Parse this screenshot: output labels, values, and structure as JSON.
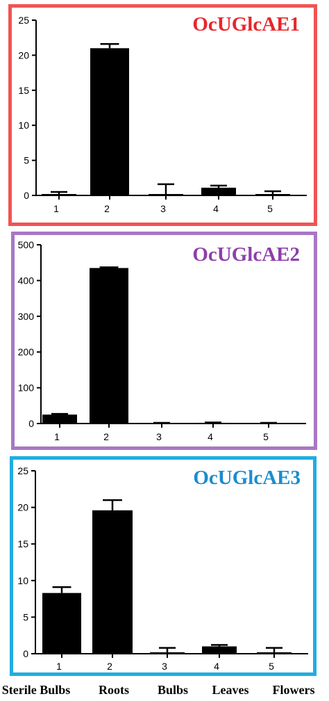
{
  "bottom_labels": [
    "Sterile Bulbs",
    "Roots",
    "Bulbs",
    "Leaves",
    "Flowers"
  ],
  "chart_data": [
    {
      "type": "bar",
      "title": "OcUGlcAE1",
      "title_color": "#e8262a",
      "border_color": "#f05455",
      "categories": [
        "1",
        "2",
        "3",
        "4",
        "5"
      ],
      "values": [
        0.2,
        21.0,
        0.2,
        1.1,
        0.2
      ],
      "errors": [
        0.3,
        0.6,
        1.4,
        0.3,
        0.4
      ],
      "ylim": [
        0,
        25
      ],
      "yticks": [
        0,
        5,
        10,
        15,
        20,
        25
      ],
      "xlabel": "",
      "ylabel": ""
    },
    {
      "type": "bar",
      "title": "OcUGlcAE2",
      "title_color": "#8d3fa9",
      "border_color": "#a877c5",
      "categories": [
        "1",
        "2",
        "3",
        "4",
        "5"
      ],
      "values": [
        25,
        435,
        1,
        2,
        1
      ],
      "errors": [
        2,
        2,
        1,
        1,
        1
      ],
      "ylim": [
        0,
        500
      ],
      "yticks": [
        0,
        100,
        200,
        300,
        400,
        500
      ],
      "xlabel": "",
      "ylabel": ""
    },
    {
      "type": "bar",
      "title": "OcUGlcAE3",
      "title_color": "#1b8ccf",
      "border_color": "#1faee0",
      "categories": [
        "1",
        "2",
        "3",
        "4",
        "5"
      ],
      "values": [
        8.3,
        19.6,
        0.2,
        1.0,
        0.2
      ],
      "errors": [
        0.8,
        1.4,
        0.6,
        0.2,
        0.6
      ],
      "ylim": [
        0,
        25
      ],
      "yticks": [
        0,
        5,
        10,
        15,
        20,
        25
      ],
      "xlabel": "",
      "ylabel": ""
    }
  ]
}
